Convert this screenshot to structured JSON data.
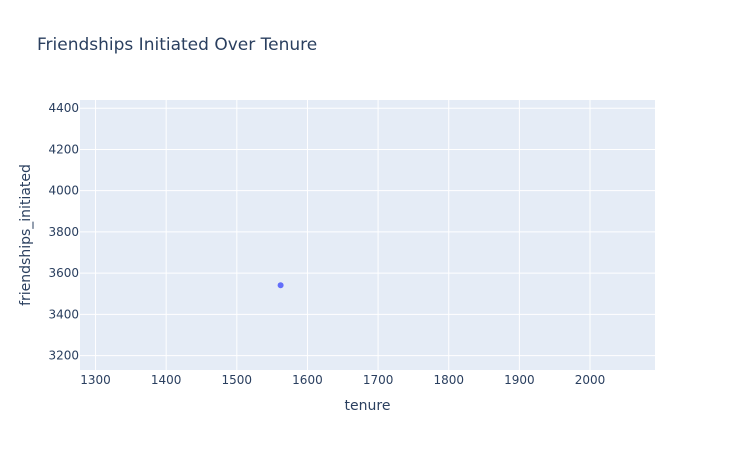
{
  "chart_data": {
    "type": "scatter",
    "title": "Friendships Initiated Over Tenure",
    "xlabel": "tenure",
    "ylabel": "friendships_initiated",
    "x": [
      1562
    ],
    "y": [
      3541
    ],
    "xlim": [
      1278,
      2092
    ],
    "ylim": [
      3130,
      4440
    ],
    "xticks": [
      1300,
      1400,
      1500,
      1600,
      1700,
      1800,
      1900,
      2000
    ],
    "yticks": [
      3200,
      3400,
      3600,
      3800,
      4000,
      4200,
      4400
    ],
    "grid": true,
    "colors": {
      "plot_background": "#e5ecf6",
      "grid": "#ffffff",
      "marker": "#636efa",
      "text": "#2a3f5f"
    }
  }
}
